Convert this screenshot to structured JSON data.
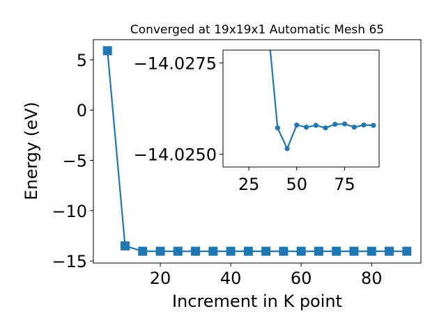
{
  "chart_data": [
    {
      "type": "line",
      "title": "Converged at 19x19x1 Automatic Mesh 65",
      "xlabel": "Increment in K point",
      "ylabel": "Energy (eV)",
      "xlim": [
        1,
        94
      ],
      "ylim": [
        -15.2,
        7
      ],
      "xticks": [
        20,
        40,
        60,
        80
      ],
      "xtick_labels": [
        "20",
        "40",
        "60",
        "80"
      ],
      "yticks": [
        5,
        0,
        -5,
        -10,
        -15
      ],
      "ytick_labels": [
        "5",
        "0",
        "−10",
        "−15"
      ],
      "ytick_labels_full": [
        "5",
        "0",
        "−5",
        "−10",
        "−15"
      ],
      "grid": false,
      "marker": "square",
      "color": "#1f77b4",
      "series": [
        {
          "x": [
            5,
            10,
            15,
            20,
            25,
            30,
            35,
            40,
            45,
            50,
            55,
            60,
            65,
            70,
            75,
            80,
            85,
            90
          ],
          "values": [
            5.9,
            -13.5,
            -14.03,
            -14.03,
            -14.03,
            -14.03,
            -14.03,
            -14.03,
            -14.03,
            -14.03,
            -14.03,
            -14.03,
            -14.03,
            -14.03,
            -14.03,
            -14.03,
            -14.03,
            -14.03
          ]
        }
      ]
    },
    {
      "type": "line",
      "role": "inset",
      "title": "",
      "xlabel": "",
      "ylabel": "",
      "xlim": [
        11.5,
        93
      ],
      "ylim": [
        -14.02465,
        -14.02785
      ],
      "xticks": [
        25,
        50,
        75
      ],
      "xtick_labels": [
        "25",
        "50",
        "75"
      ],
      "yticks": [
        -14.0275,
        -14.025
      ],
      "ytick_labels": [
        "−14.0275",
        "−14.0250"
      ],
      "grid": false,
      "marker": "circle",
      "color": "#1f77b4",
      "series": [
        {
          "x": [
            35,
            40,
            45,
            50,
            55,
            60,
            65,
            70,
            75,
            80,
            85,
            90
          ],
          "values": [
            -14.0285,
            -14.02572,
            -14.02515,
            -14.0258,
            -14.02574,
            -14.02579,
            -14.02572,
            -14.02582,
            -14.02583,
            -14.02574,
            -14.0258,
            -14.02579
          ]
        }
      ]
    }
  ]
}
